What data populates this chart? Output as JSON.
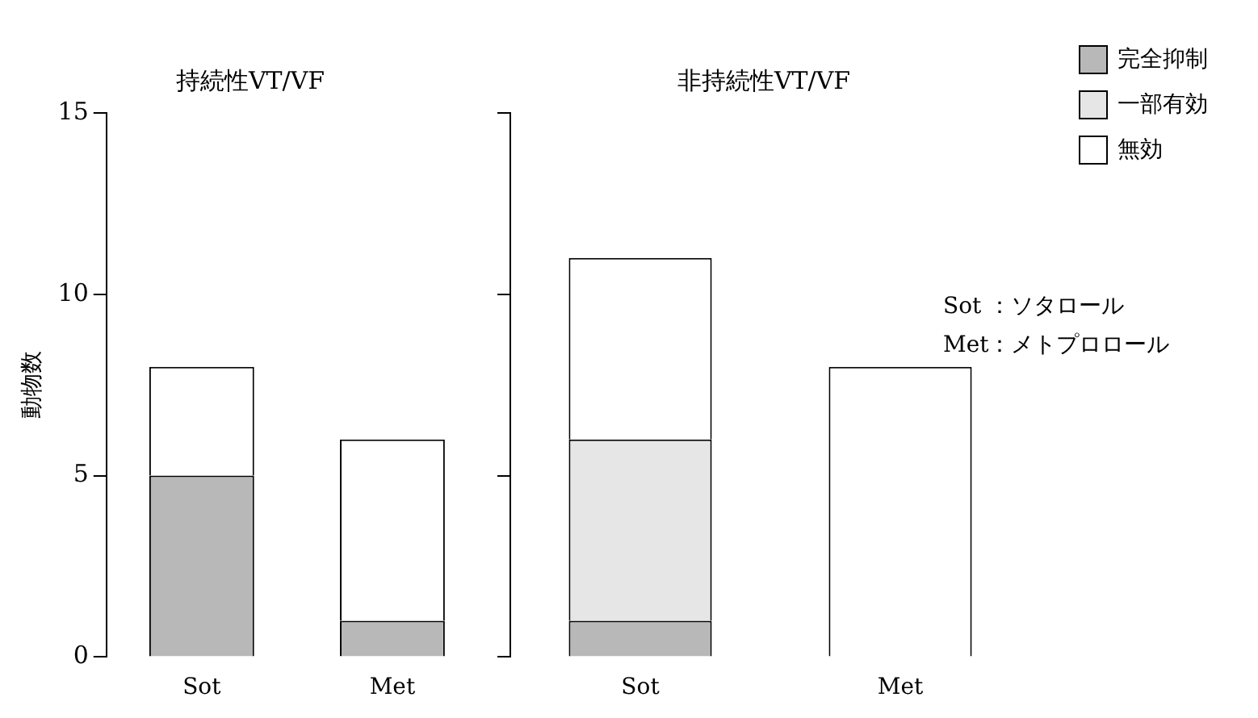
{
  "chart_data": [
    {
      "type": "bar",
      "title": "持続性VT/VF",
      "ylabel": "動物数",
      "categories": [
        "Sot",
        "Met"
      ],
      "stacked": true,
      "ylim": [
        0,
        15
      ],
      "yticks": [
        0,
        5,
        10,
        15
      ],
      "grid": false,
      "legend": false,
      "series": [
        {
          "color": "#b8b8b8",
          "values": [
            5,
            1
          ]
        },
        {
          "color": "#e6e6e6",
          "values": [
            0,
            0
          ]
        },
        {
          "color": "#ffffff",
          "values": [
            3,
            5
          ]
        }
      ]
    },
    {
      "type": "bar",
      "title": "非持続性VT/VF",
      "categories": [
        "Sot",
        "Met"
      ],
      "stacked": true,
      "ylim": [
        0,
        15
      ],
      "yticks": [
        0,
        5,
        10,
        15
      ],
      "tick_labels": "x",
      "grid": false,
      "legend": "right",
      "annotations": [
        "Sot ：ソタロール",
        "Met：メトプロロール"
      ],
      "series": [
        {
          "name": "完全抑制",
          "color": "#b8b8b8",
          "values": [
            1,
            0
          ]
        },
        {
          "name": "一部有効",
          "color": "#e6e6e6",
          "values": [
            5,
            0
          ]
        },
        {
          "name": "無効",
          "color": "#ffffff",
          "values": [
            5,
            8
          ]
        }
      ]
    }
  ]
}
